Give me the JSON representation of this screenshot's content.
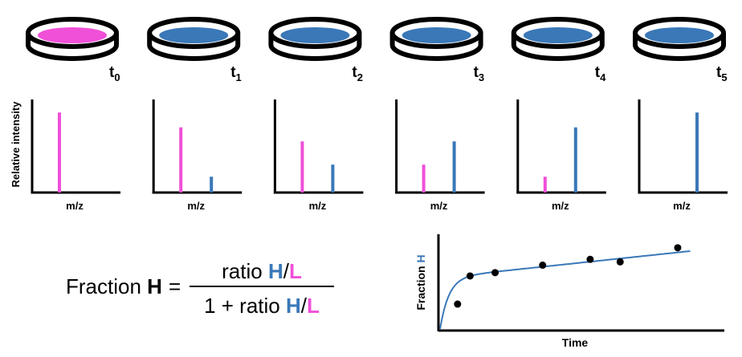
{
  "colors": {
    "light": "#f050d8",
    "heavy": "#3a78b8",
    "ink": "#000000"
  },
  "timepoints": [
    {
      "t_base": "t",
      "t_sub": "0",
      "dish": "light",
      "light": 0.86,
      "heavy": 0
    },
    {
      "t_base": "t",
      "t_sub": "1",
      "dish": "heavy",
      "light": 0.7,
      "heavy": 0.17
    },
    {
      "t_base": "t",
      "t_sub": "2",
      "dish": "heavy",
      "light": 0.55,
      "heavy": 0.3
    },
    {
      "t_base": "t",
      "t_sub": "3",
      "dish": "heavy",
      "light": 0.3,
      "heavy": 0.55
    },
    {
      "t_base": "t",
      "t_sub": "4",
      "dish": "heavy",
      "light": 0.17,
      "heavy": 0.7
    },
    {
      "t_base": "t",
      "t_sub": "5",
      "dish": "heavy",
      "light": 0,
      "heavy": 0.86
    }
  ],
  "spectrum": {
    "xlabel": "m/z",
    "ylabel": "Relative intensity"
  },
  "formula": {
    "lhs_text": "Fraction ",
    "lhs_symbol": "H",
    "equals": "=",
    "num_text": "ratio ",
    "den_text": "1 + ratio ",
    "h": "H",
    "slash": "/",
    "l": "L"
  },
  "plot": {
    "xlabel": "Time",
    "ylabel_text": "Fraction ",
    "ylabel_symbol": "H",
    "points": [
      [
        0.07,
        0.3
      ],
      [
        0.12,
        0.64
      ],
      [
        0.22,
        0.68
      ],
      [
        0.41,
        0.77
      ],
      [
        0.6,
        0.84
      ],
      [
        0.72,
        0.81
      ],
      [
        0.95,
        0.98
      ]
    ]
  }
}
